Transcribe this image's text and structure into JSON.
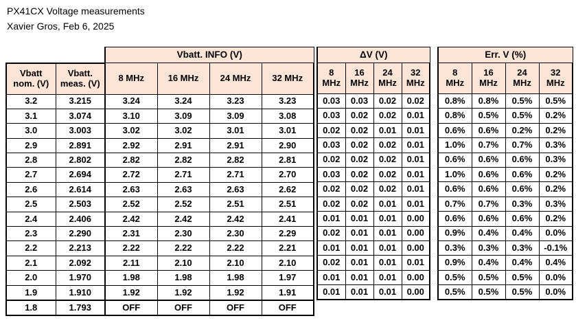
{
  "page": {
    "title": "PX41CX Voltage measurements",
    "subtitle": "Xavier Gros, Feb 6, 2025"
  },
  "colors": {
    "header_fill": "#FCE4D6",
    "border": "#000000",
    "background": "#FFFFFF",
    "text": "#000000"
  },
  "tables": {
    "info": {
      "group_header": "Vbatt. INFO (V)",
      "row_header_cols": [
        {
          "line1": "Vbatt",
          "line2": "nom. (V)"
        },
        {
          "line1": "Vbatt.",
          "line2": "meas. (V)"
        }
      ],
      "freq_headers": [
        "8 MHz",
        "16 MHz",
        "24 MHz",
        "32 MHz"
      ]
    },
    "dv": {
      "group_header": "ΔV (V)",
      "freq_top": [
        "8",
        "16",
        "24",
        "32"
      ],
      "freq_unit": "MHz"
    },
    "err": {
      "group_header": "Err. V (%)",
      "freq_top": [
        "8",
        "16",
        "24",
        "32"
      ],
      "freq_unit": "MHz"
    }
  },
  "rows": [
    {
      "nom": "3.2",
      "meas": "3.215",
      "info": [
        "3.24",
        "3.24",
        "3.23",
        "3.23"
      ],
      "dv": [
        "0.03",
        "0.03",
        "0.02",
        "0.02"
      ],
      "err": [
        "0.8%",
        "0.8%",
        "0.5%",
        "0.5%"
      ]
    },
    {
      "nom": "3.1",
      "meas": "3.074",
      "info": [
        "3.10",
        "3.09",
        "3.09",
        "3.08"
      ],
      "dv": [
        "0.03",
        "0.02",
        "0.02",
        "0.01"
      ],
      "err": [
        "0.8%",
        "0.5%",
        "0.5%",
        "0.2%"
      ]
    },
    {
      "nom": "3.0",
      "meas": "3.003",
      "info": [
        "3.02",
        "3.02",
        "3.01",
        "3.01"
      ],
      "dv": [
        "0.02",
        "0.02",
        "0.01",
        "0.01"
      ],
      "err": [
        "0.6%",
        "0.6%",
        "0.2%",
        "0.2%"
      ]
    },
    {
      "nom": "2.9",
      "meas": "2.891",
      "info": [
        "2.92",
        "2.91",
        "2.91",
        "2.90"
      ],
      "dv": [
        "0.03",
        "0.02",
        "0.02",
        "0.01"
      ],
      "err": [
        "1.0%",
        "0.7%",
        "0.7%",
        "0.3%"
      ]
    },
    {
      "nom": "2.8",
      "meas": "2.802",
      "info": [
        "2.82",
        "2.82",
        "2.82",
        "2.81"
      ],
      "dv": [
        "0.02",
        "0.02",
        "0.02",
        "0.01"
      ],
      "err": [
        "0.6%",
        "0.6%",
        "0.6%",
        "0.3%"
      ]
    },
    {
      "nom": "2.7",
      "meas": "2.694",
      "info": [
        "2.72",
        "2.71",
        "2.71",
        "2.70"
      ],
      "dv": [
        "0.03",
        "0.02",
        "0.02",
        "0.01"
      ],
      "err": [
        "1.0%",
        "0.6%",
        "0.6%",
        "0.2%"
      ]
    },
    {
      "nom": "2.6",
      "meas": "2.614",
      "info": [
        "2.63",
        "2.63",
        "2.63",
        "2.62"
      ],
      "dv": [
        "0.02",
        "0.02",
        "0.02",
        "0.01"
      ],
      "err": [
        "0.6%",
        "0.6%",
        "0.6%",
        "0.2%"
      ]
    },
    {
      "nom": "2.5",
      "meas": "2.503",
      "info": [
        "2.52",
        "2.52",
        "2.51",
        "2.51"
      ],
      "dv": [
        "0.02",
        "0.02",
        "0.01",
        "0.01"
      ],
      "err": [
        "0.7%",
        "0.7%",
        "0.3%",
        "0.3%"
      ]
    },
    {
      "nom": "2.4",
      "meas": "2.406",
      "info": [
        "2.42",
        "2.42",
        "2.42",
        "2.41"
      ],
      "dv": [
        "0.01",
        "0.01",
        "0.01",
        "0.00"
      ],
      "err": [
        "0.6%",
        "0.6%",
        "0.6%",
        "0.2%"
      ]
    },
    {
      "nom": "2.3",
      "meas": "2.290",
      "info": [
        "2.31",
        "2.30",
        "2.30",
        "2.29"
      ],
      "dv": [
        "0.02",
        "0.01",
        "0.01",
        "0.00"
      ],
      "err": [
        "0.9%",
        "0.4%",
        "0.4%",
        "0.0%"
      ]
    },
    {
      "nom": "2.2",
      "meas": "2.213",
      "info": [
        "2.22",
        "2.22",
        "2.22",
        "2.21"
      ],
      "dv": [
        "0.01",
        "0.01",
        "0.01",
        "0.00"
      ],
      "err": [
        "0.3%",
        "0.3%",
        "0.3%",
        "-0.1%"
      ]
    },
    {
      "nom": "2.1",
      "meas": "2.092",
      "info": [
        "2.11",
        "2.10",
        "2.10",
        "2.10"
      ],
      "dv": [
        "0.02",
        "0.01",
        "0.01",
        "0.01"
      ],
      "err": [
        "0.9%",
        "0.4%",
        "0.4%",
        "0.4%"
      ]
    },
    {
      "nom": "2.0",
      "meas": "1.970",
      "info": [
        "1.98",
        "1.98",
        "1.98",
        "1.97"
      ],
      "dv": [
        "0.01",
        "0.01",
        "0.01",
        "0.00"
      ],
      "err": [
        "0.5%",
        "0.5%",
        "0.5%",
        "0.0%"
      ]
    },
    {
      "nom": "1.9",
      "meas": "1.910",
      "info": [
        "1.92",
        "1.92",
        "1.92",
        "1.91"
      ],
      "dv": [
        "0.01",
        "0.01",
        "0.01",
        "0.00"
      ],
      "err": [
        "0.5%",
        "0.5%",
        "0.5%",
        "0.0%"
      ]
    },
    {
      "nom": "1.8",
      "meas": "1.793",
      "info": [
        "OFF",
        "OFF",
        "OFF",
        "OFF"
      ],
      "dv": null,
      "err": null
    }
  ]
}
